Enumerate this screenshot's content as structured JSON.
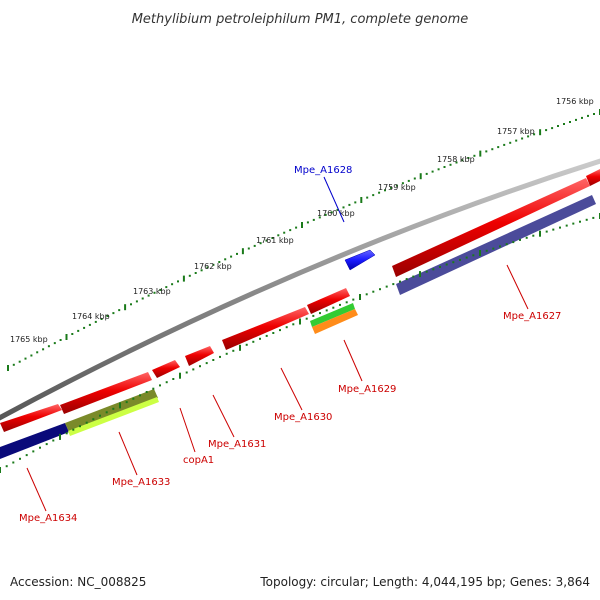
{
  "title": "Methylibium petroleiphilum PM1, complete genome",
  "footer": {
    "accession": "Accession: NC_008825",
    "summary": "Topology: circular; Length: 4,044,195 bp; Genes: 3,864"
  },
  "scale": {
    "ticks": [
      "1756 kbp",
      "1757 kbp",
      "1758 kbp",
      "1759 kbp",
      "1760 kbp",
      "1761 kbp",
      "1762 kbp",
      "1763 kbp",
      "1764 kbp",
      "1765 kbp"
    ]
  },
  "genes": [
    {
      "name": "Mpe_A1628",
      "color": "#0000cc"
    },
    {
      "name": "Mpe_A1627",
      "color": "#cc0000"
    },
    {
      "name": "Mpe_A1629",
      "color": "#cc0000"
    },
    {
      "name": "Mpe_A1630",
      "color": "#cc0000"
    },
    {
      "name": "Mpe_A1631",
      "color": "#cc0000"
    },
    {
      "name": "copA1",
      "color": "#cc0000"
    },
    {
      "name": "Mpe_A1633",
      "color": "#cc0000"
    },
    {
      "name": "Mpe_A1634",
      "color": "#cc0000"
    }
  ],
  "colors": {
    "backbone": "#808080",
    "forward_gene": "#dd0000",
    "plus_gene": "#1a1aff",
    "cog_purple": "#4b4b9a",
    "cog_navy": "#0a0a7a",
    "cog_green": "#33cc33",
    "cog_orange": "#ff8c1a",
    "cog_olive": "#7a8a2a",
    "cog_lime": "#ccff44",
    "tick_green": "#1a7a1a"
  }
}
